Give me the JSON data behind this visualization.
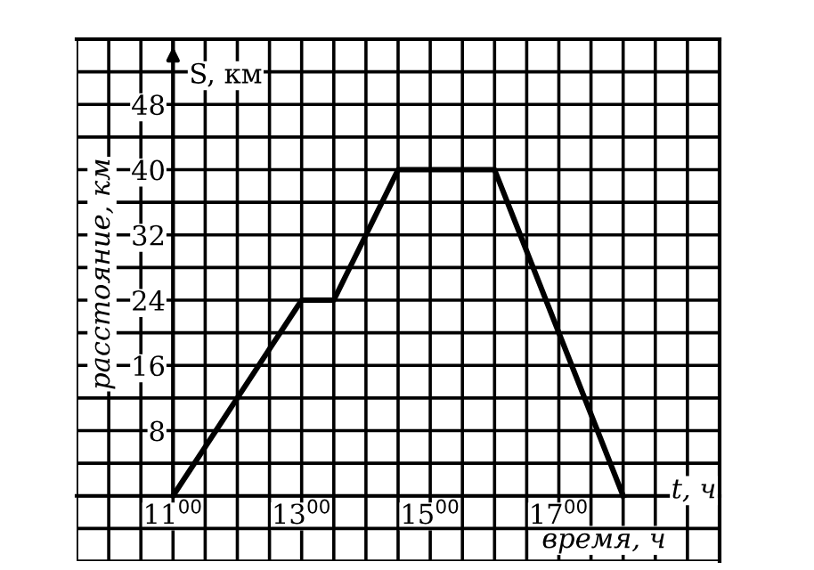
{
  "chart_data": {
    "type": "line",
    "xlabel": "время, ч",
    "ylabel": "расстояние, км",
    "annotations": [
      "S, км",
      "t, ч"
    ],
    "categories": [
      null,
      null,
      null,
      "11$^{00}$",
      null,
      null,
      null,
      "13$^{00}$",
      null,
      null,
      null,
      "15$^{00}$",
      null,
      null,
      null,
      "17$^{00}$",
      null,
      null,
      null,
      null,
      null
    ],
    "series": [
      {
        "color": "#000000",
        "values": [
          null,
          null,
          null,
          0,
          6,
          12,
          18,
          24,
          24,
          32,
          40,
          40,
          40,
          40,
          30,
          20,
          10,
          0,
          null,
          null,
          null
        ]
      }
    ],
    "ylim": [
      -8,
      56
    ],
    "yticks": [
      {
        "value": -8,
        "label": null
      },
      {
        "value": -4,
        "label": null
      },
      {
        "value": 0,
        "label": null
      },
      {
        "value": 4,
        "label": null
      },
      8,
      {
        "value": 12,
        "label": null
      },
      16,
      {
        "value": 20,
        "label": null
      },
      24,
      {
        "value": 28,
        "label": null
      },
      32,
      {
        "value": 36,
        "label": null
      },
      40,
      {
        "value": 44,
        "label": null
      },
      48,
      {
        "value": 52,
        "label": null
      },
      {
        "value": 56,
        "label": null
      }
    ],
    "grid": true,
    "marker": "none",
    "line_style": "solid"
  }
}
